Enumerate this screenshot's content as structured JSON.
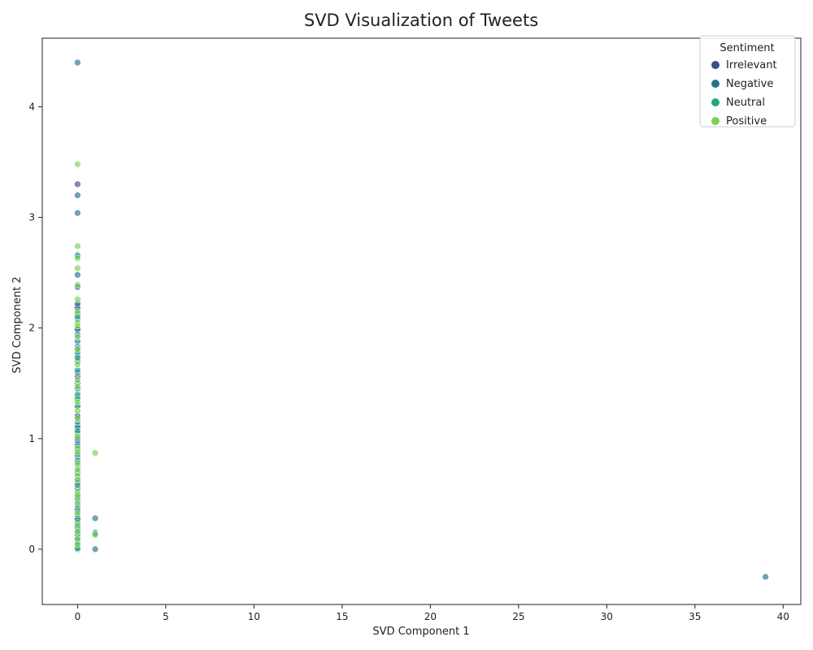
{
  "chart_data": {
    "type": "scatter",
    "title": "SVD Visualization of Tweets",
    "xlabel": "SVD Component 1",
    "ylabel": "SVD Component 2",
    "xlim": [
      -2,
      41
    ],
    "ylim": [
      -0.5,
      4.62
    ],
    "xticks": [
      0,
      5,
      10,
      15,
      20,
      25,
      30,
      35,
      40
    ],
    "yticks": [
      0,
      1,
      2,
      3,
      4
    ],
    "grid": false,
    "legend": {
      "title": "Sentiment",
      "placement": "top-right"
    },
    "series": [
      {
        "name": "Irrelevant",
        "color": "#3b4c8a",
        "points": [
          [
            0,
            3.3
          ],
          [
            0,
            2.37
          ],
          [
            0,
            2.2
          ],
          [
            0,
            2.18
          ],
          [
            0,
            1.98
          ],
          [
            0,
            1.56
          ],
          [
            0,
            1.21
          ],
          [
            0,
            1.12
          ],
          [
            0,
            0.98
          ],
          [
            0,
            0.84
          ],
          [
            0,
            0.62
          ],
          [
            0,
            0.55
          ],
          [
            0,
            0.37
          ],
          [
            0,
            0.28
          ],
          [
            0,
            0.19
          ],
          [
            0,
            0.11
          ],
          [
            0,
            0.08
          ],
          [
            0,
            0.02
          ]
        ]
      },
      {
        "name": "Negative",
        "color": "#23738e",
        "points": [
          [
            0,
            4.4
          ],
          [
            0,
            3.2
          ],
          [
            0,
            3.04
          ],
          [
            0,
            2.66
          ],
          [
            0,
            2.48
          ],
          [
            0,
            2.22
          ],
          [
            0,
            2.13
          ],
          [
            0,
            2.08
          ],
          [
            0,
            1.99
          ],
          [
            0,
            1.94
          ],
          [
            0,
            1.88
          ],
          [
            0,
            1.83
          ],
          [
            0,
            1.8
          ],
          [
            0,
            1.75
          ],
          [
            0,
            1.7
          ],
          [
            0,
            1.6
          ],
          [
            0,
            1.5
          ],
          [
            0,
            1.45
          ],
          [
            0,
            1.38
          ],
          [
            0,
            1.3
          ],
          [
            0,
            1.2
          ],
          [
            0,
            1.1
          ],
          [
            0,
            1.05
          ],
          [
            0,
            1.0
          ],
          [
            0,
            0.95
          ],
          [
            0,
            0.9
          ],
          [
            0,
            0.8
          ],
          [
            0,
            0.7
          ],
          [
            0,
            0.6
          ],
          [
            0,
            0.5
          ],
          [
            0,
            0.45
          ],
          [
            0,
            0.35
          ],
          [
            0,
            0.27
          ],
          [
            0,
            0.2
          ],
          [
            0,
            0.15
          ],
          [
            0,
            0.1
          ],
          [
            0,
            0.05
          ],
          [
            0,
            0.0
          ],
          [
            1,
            0.28
          ],
          [
            1,
            0.15
          ],
          [
            1,
            0.0
          ],
          [
            39,
            -0.25
          ]
        ]
      },
      {
        "name": "Neutral",
        "color": "#22a884",
        "points": [
          [
            0,
            2.65
          ],
          [
            0,
            2.1
          ],
          [
            0,
            1.78
          ],
          [
            0,
            1.73
          ],
          [
            0,
            1.62
          ],
          [
            0,
            1.4
          ],
          [
            0,
            1.36
          ],
          [
            0,
            1.29
          ],
          [
            0,
            1.15
          ],
          [
            0,
            1.07
          ],
          [
            0,
            0.93
          ],
          [
            0,
            0.86
          ],
          [
            0,
            0.76
          ],
          [
            0,
            0.68
          ],
          [
            0,
            0.58
          ],
          [
            0,
            0.47
          ],
          [
            0,
            0.4
          ],
          [
            0,
            0.31
          ],
          [
            0,
            0.24
          ],
          [
            0,
            0.13
          ],
          [
            0,
            0.06
          ],
          [
            0,
            0.01
          ],
          [
            1,
            0.14
          ]
        ]
      },
      {
        "name": "Positive",
        "color": "#7ad151",
        "points": [
          [
            0,
            3.48
          ],
          [
            0,
            2.74
          ],
          [
            0,
            2.63
          ],
          [
            0,
            2.54
          ],
          [
            0,
            2.39
          ],
          [
            0,
            2.26
          ],
          [
            0,
            2.15
          ],
          [
            0,
            2.05
          ],
          [
            0,
            2.02
          ],
          [
            0,
            1.92
          ],
          [
            0,
            1.81
          ],
          [
            0,
            1.67
          ],
          [
            0,
            1.53
          ],
          [
            0,
            1.47
          ],
          [
            0,
            1.33
          ],
          [
            0,
            1.25
          ],
          [
            0,
            1.18
          ],
          [
            0,
            1.02
          ],
          [
            0,
            0.91
          ],
          [
            0,
            0.88
          ],
          [
            0,
            0.78
          ],
          [
            0,
            0.72
          ],
          [
            0,
            0.66
          ],
          [
            0,
            0.63
          ],
          [
            0,
            0.52
          ],
          [
            0,
            0.49
          ],
          [
            0,
            0.42
          ],
          [
            0,
            0.33
          ],
          [
            0,
            0.22
          ],
          [
            0,
            0.16
          ],
          [
            0,
            0.09
          ],
          [
            0,
            0.04
          ],
          [
            1,
            0.87
          ],
          [
            1,
            0.13
          ]
        ]
      }
    ]
  }
}
